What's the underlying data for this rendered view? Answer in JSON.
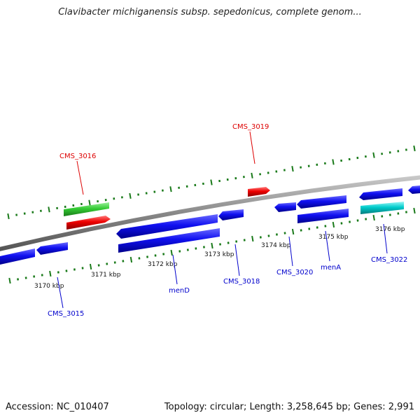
{
  "title": "Clavibacter michiganensis subsp. sepedonicus, complete genom...",
  "footer": {
    "accession": "Accession: NC_010407",
    "summary": "Topology: circular; Length: 3,258,645 bp; Genes: 2,991"
  },
  "colors": {
    "forward_label": "#dd0000",
    "reverse_label": "#0000cc",
    "backbone": "#888888",
    "tick": "#1a7a1a",
    "cds_blue": "#0000ee",
    "cds_red": "#ee0000",
    "cds_green": "#33cc33",
    "cds_cyan": "#00cccc"
  },
  "scale_labels": [
    "3170 kbp",
    "3171 kbp",
    "3172 kbp",
    "3173 kbp",
    "3174 kbp",
    "3175 kbp",
    "3176 kbp"
  ],
  "forward_gene_labels": [
    "CMS_3016",
    "CMS_3019"
  ],
  "reverse_gene_labels": [
    "CMS_3015",
    "menD",
    "CMS_3018",
    "CMS_3020",
    "menA",
    "CMS_3022"
  ]
}
